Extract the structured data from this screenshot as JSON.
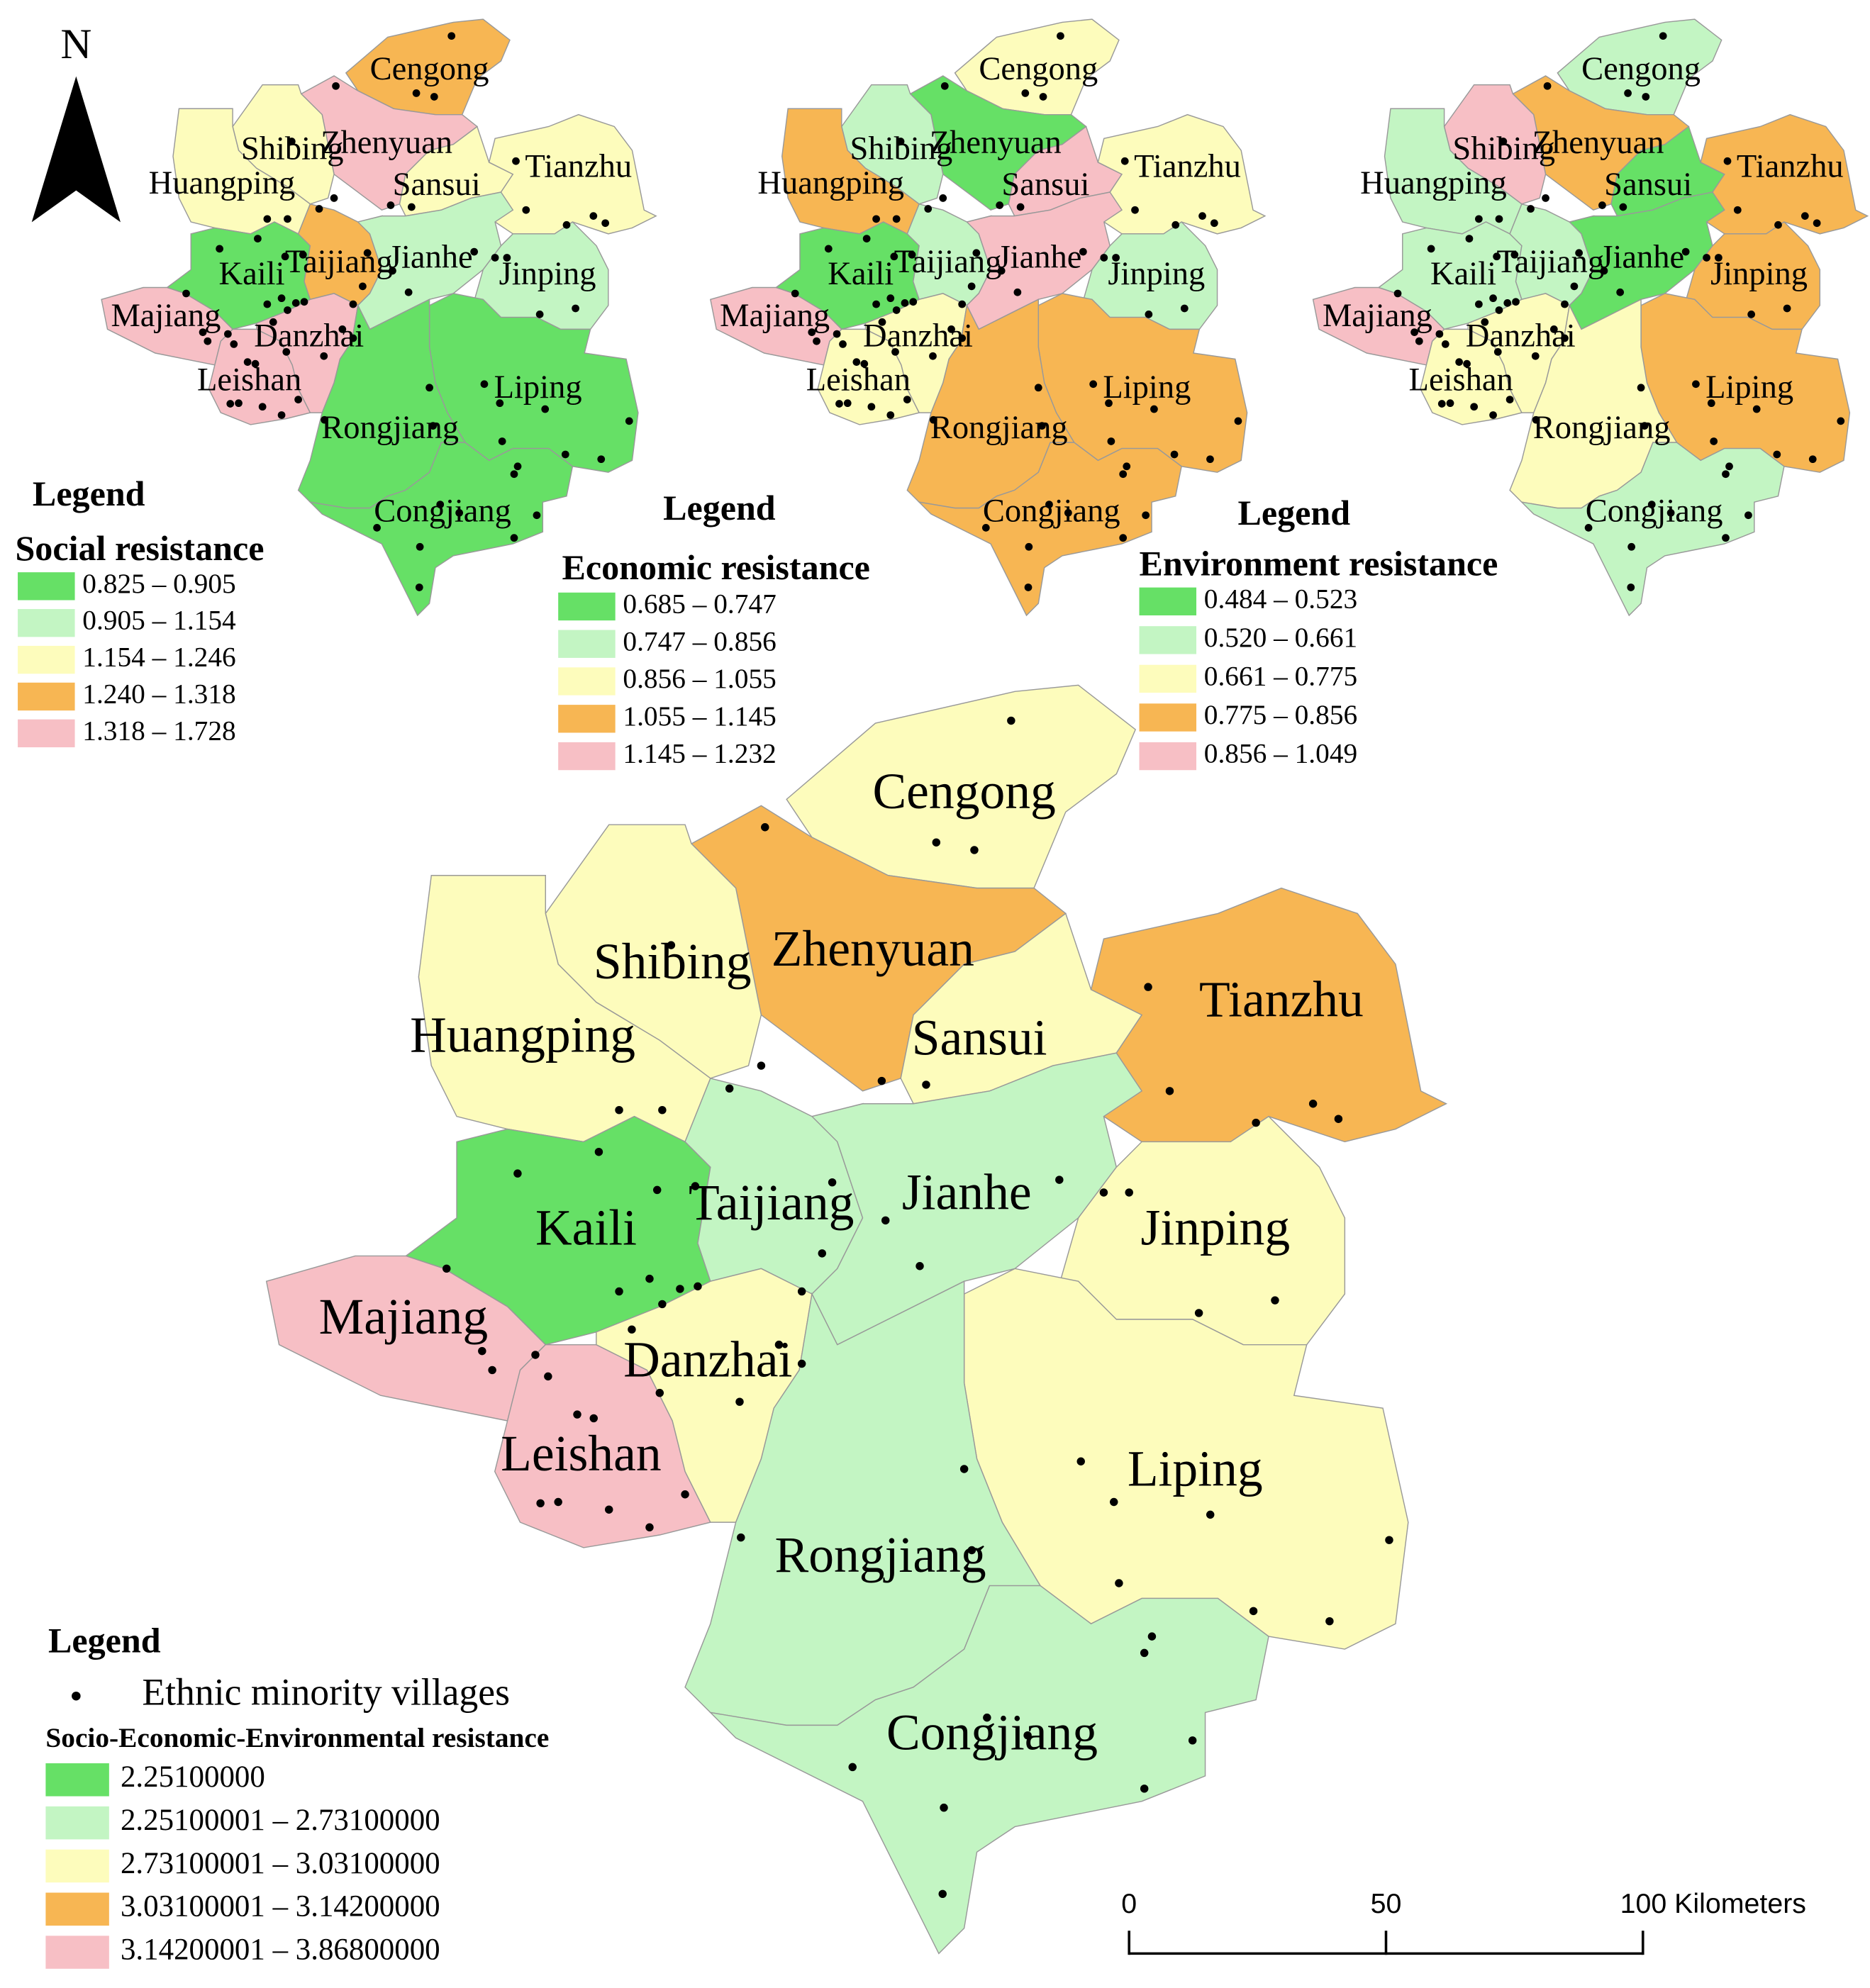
{
  "north_label": "N",
  "maps": [
    {
      "legend_heading": "Legend",
      "legend_title": "Social resistance",
      "classes": [
        {
          "label": "0.825 – 0.905",
          "color": "#66e066"
        },
        {
          "label": "0.905 – 1.154",
          "color": "#c3f5c3"
        },
        {
          "label": "1.154 – 1.246",
          "color": "#fdfcbc"
        },
        {
          "label": "1.240 – 1.318",
          "color": "#f7b653"
        },
        {
          "label": "1.318 – 1.728",
          "color": "#f7bfc5"
        }
      ],
      "counties": [
        {
          "name": "Cengong",
          "color": "#f7b653"
        },
        {
          "name": "Zhenyuan",
          "color": "#f7bfc5"
        },
        {
          "name": "Shibing",
          "color": "#fdfcbc"
        },
        {
          "name": "Huangping",
          "color": "#fdfcbc"
        },
        {
          "name": "Sansui",
          "color": "#fdfcbc"
        },
        {
          "name": "Tianzhu",
          "color": "#fdfcbc"
        },
        {
          "name": "Kaili",
          "color": "#66e066"
        },
        {
          "name": "Taijiang",
          "color": "#f7b653"
        },
        {
          "name": "Jianhe",
          "color": "#c3f5c3"
        },
        {
          "name": "Jinping",
          "color": "#c3f5c3"
        },
        {
          "name": "Majiang",
          "color": "#f7bfc5"
        },
        {
          "name": "Danzhai",
          "color": "#f7bfc5"
        },
        {
          "name": "Leishan",
          "color": "#f7bfc5"
        },
        {
          "name": "Liping",
          "color": "#66e066"
        },
        {
          "name": "Rongjiang",
          "color": "#66e066"
        },
        {
          "name": "Congjiang",
          "color": "#66e066"
        }
      ]
    },
    {
      "legend_heading": "Legend",
      "legend_title": "Economic resistance",
      "classes": [
        {
          "label": "0.685 – 0.747",
          "color": "#66e066"
        },
        {
          "label": "0.747 – 0.856",
          "color": "#c3f5c3"
        },
        {
          "label": "0.856 – 1.055",
          "color": "#fdfcbc"
        },
        {
          "label": "1.055 – 1.145",
          "color": "#f7b653"
        },
        {
          "label": "1.145 – 1.232",
          "color": "#f7bfc5"
        }
      ],
      "counties": [
        {
          "name": "Cengong",
          "color": "#fdfcbc"
        },
        {
          "name": "Zhenyuan",
          "color": "#66e066"
        },
        {
          "name": "Shibing",
          "color": "#c3f5c3"
        },
        {
          "name": "Huangping",
          "color": "#f7b653"
        },
        {
          "name": "Sansui",
          "color": "#f7bfc5"
        },
        {
          "name": "Tianzhu",
          "color": "#fdfcbc"
        },
        {
          "name": "Kaili",
          "color": "#66e066"
        },
        {
          "name": "Taijiang",
          "color": "#c3f5c3"
        },
        {
          "name": "Jianhe",
          "color": "#f7bfc5"
        },
        {
          "name": "Jinping",
          "color": "#c3f5c3"
        },
        {
          "name": "Majiang",
          "color": "#f7bfc5"
        },
        {
          "name": "Danzhai",
          "color": "#fdfcbc"
        },
        {
          "name": "Leishan",
          "color": "#fdfcbc"
        },
        {
          "name": "Liping",
          "color": "#f7b653"
        },
        {
          "name": "Rongjiang",
          "color": "#f7b653"
        },
        {
          "name": "Congjiang",
          "color": "#f7b653"
        }
      ]
    },
    {
      "legend_heading": "Legend",
      "legend_title": "Environment  resistance",
      "classes": [
        {
          "label": "0.484 – 0.523",
          "color": "#66e066"
        },
        {
          "label": "0.520 – 0.661",
          "color": "#c3f5c3"
        },
        {
          "label": "0.661 – 0.775",
          "color": "#fdfcbc"
        },
        {
          "label": "0.775 – 0.856",
          "color": "#f7b653"
        },
        {
          "label": "0.856 – 1.049",
          "color": "#f7bfc5"
        }
      ],
      "counties": [
        {
          "name": "Cengong",
          "color": "#c3f5c3"
        },
        {
          "name": "Zhenyuan",
          "color": "#f7b653"
        },
        {
          "name": "Shibing",
          "color": "#f7bfc5"
        },
        {
          "name": "Huangping",
          "color": "#c3f5c3"
        },
        {
          "name": "Sansui",
          "color": "#66e066"
        },
        {
          "name": "Tianzhu",
          "color": "#f7b653"
        },
        {
          "name": "Kaili",
          "color": "#c3f5c3"
        },
        {
          "name": "Taijiang",
          "color": "#c3f5c3"
        },
        {
          "name": "Jianhe",
          "color": "#66e066"
        },
        {
          "name": "Jinping",
          "color": "#f7b653"
        },
        {
          "name": "Majiang",
          "color": "#f7bfc5"
        },
        {
          "name": "Danzhai",
          "color": "#fdfcbc"
        },
        {
          "name": "Leishan",
          "color": "#fdfcbc"
        },
        {
          "name": "Liping",
          "color": "#f7b653"
        },
        {
          "name": "Rongjiang",
          "color": "#fdfcbc"
        },
        {
          "name": "Congjiang",
          "color": "#c3f5c3"
        }
      ]
    }
  ],
  "main_map": {
    "legend_heading": "Legend",
    "points_label": "Ethnic minority villages",
    "legend_title": "Socio-Economic-Environmental resistance",
    "classes": [
      {
        "label": "2.25100000",
        "color": "#66e066"
      },
      {
        "label": "2.25100001 – 2.73100000",
        "color": "#c3f5c3"
      },
      {
        "label": "2.73100001 – 3.03100000",
        "color": "#fdfcbc"
      },
      {
        "label": "3.03100001 – 3.14200000",
        "color": "#f7b653"
      },
      {
        "label": "3.14200001 – 3.86800000",
        "color": "#f7bfc5"
      }
    ],
    "counties": [
      {
        "name": "Cengong",
        "color": "#fdfcbc"
      },
      {
        "name": "Zhenyuan",
        "color": "#f7b653"
      },
      {
        "name": "Shibing",
        "color": "#fdfcbc"
      },
      {
        "name": "Huangping",
        "color": "#fdfcbc"
      },
      {
        "name": "Sansui",
        "color": "#fdfcbc"
      },
      {
        "name": "Tianzhu",
        "color": "#f7b653"
      },
      {
        "name": "Kaili",
        "color": "#66e066"
      },
      {
        "name": "Taijiang",
        "color": "#c3f5c3"
      },
      {
        "name": "Jianhe",
        "color": "#c3f5c3"
      },
      {
        "name": "Jinping",
        "color": "#fdfcbc"
      },
      {
        "name": "Majiang",
        "color": "#f7bfc5"
      },
      {
        "name": "Danzhai",
        "color": "#f7bfc5"
      },
      {
        "name": "Leishan",
        "color": "#fdfcbc"
      },
      {
        "name": "Liping",
        "color": "#fdfcbc"
      },
      {
        "name": "Rongjiang",
        "color": "#c3f5c3"
      },
      {
        "name": "Congjiang",
        "color": "#c3f5c3"
      }
    ]
  },
  "scale_bar": {
    "range": [
      0,
      100
    ],
    "ticks": [
      0,
      50,
      {
        "value": 100,
        "label": "100 Kilometers"
      }
    ]
  }
}
